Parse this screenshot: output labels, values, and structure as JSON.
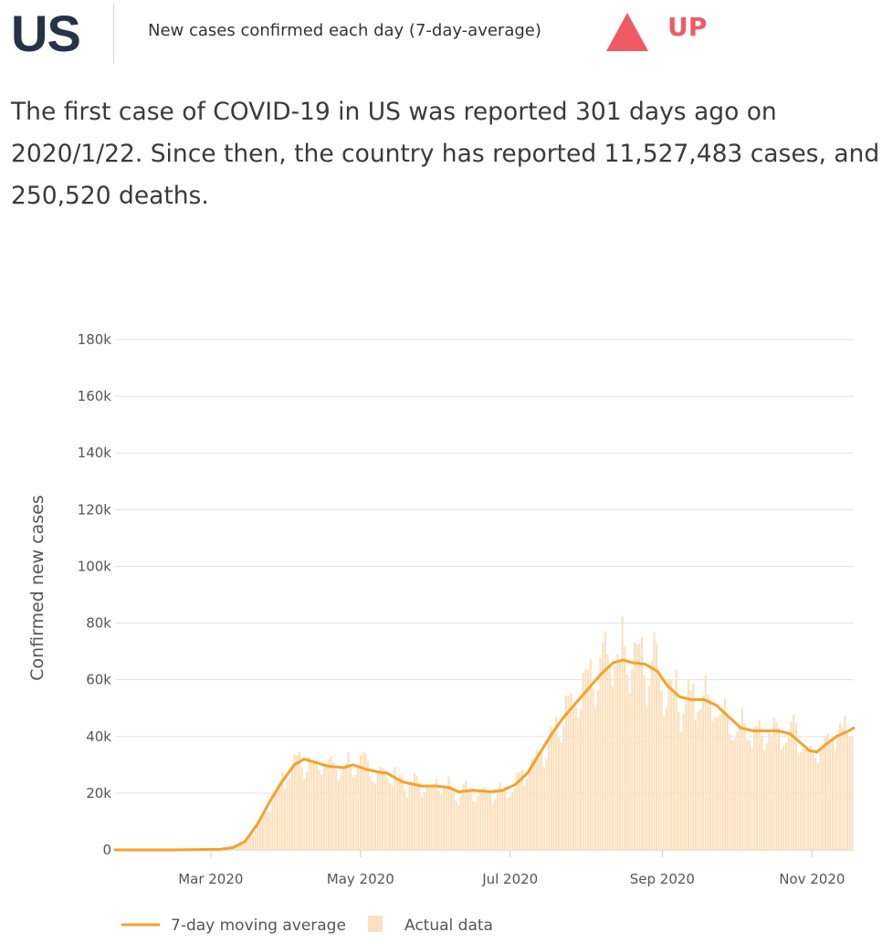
{
  "header": {
    "country": "US",
    "metric_label": "New cases confirmed each day (7-day-average)",
    "trend_icon": "triangle-up-icon",
    "trend_label": "UP",
    "trend_color": "#f05a64"
  },
  "summary": {
    "line1": "The first case of COVID-19 in US was reported 301 days ago on",
    "line2": "2020/1/22. Since then, the country has reported 11,527,483 cases, and",
    "line3": "250,520 deaths."
  },
  "chart_data": {
    "type": "bar+line",
    "ylabel": "Confirmed new cases",
    "ylim": [
      0,
      180000
    ],
    "yticks": [
      0,
      20000,
      40000,
      60000,
      80000,
      100000,
      120000,
      140000,
      160000,
      180000
    ],
    "ytick_labels": [
      "0",
      "20k",
      "40k",
      "60k",
      "80k",
      "100k",
      "120k",
      "140k",
      "160k",
      "180k"
    ],
    "xlim": [
      "2020-01-22",
      "2020-11-18"
    ],
    "xticks": [
      "2020-03-01",
      "2020-05-01",
      "2020-07-01",
      "2020-09-01",
      "2020-11-01"
    ],
    "xtick_labels": [
      "Mar 2020",
      "May 2020",
      "Jul 2020",
      "Sep 2020",
      "Nov 2020"
    ],
    "grid": "horizontal",
    "legend_position": "bottom-left",
    "series": [
      {
        "name": "7-day moving average",
        "type": "line",
        "color": "#f7a12a",
        "points": [
          [
            "2020-01-22",
            0
          ],
          [
            "2020-02-15",
            0
          ],
          [
            "2020-03-05",
            200
          ],
          [
            "2020-03-10",
            800
          ],
          [
            "2020-03-15",
            3000
          ],
          [
            "2020-03-20",
            9000
          ],
          [
            "2020-03-25",
            17000
          ],
          [
            "2020-03-30",
            24000
          ],
          [
            "2020-04-04",
            30000
          ],
          [
            "2020-04-08",
            32000
          ],
          [
            "2020-04-12",
            31000
          ],
          [
            "2020-04-18",
            29500
          ],
          [
            "2020-04-24",
            29000
          ],
          [
            "2020-04-28",
            30000
          ],
          [
            "2020-05-03",
            28500
          ],
          [
            "2020-05-08",
            27500
          ],
          [
            "2020-05-12",
            27000
          ],
          [
            "2020-05-18",
            24000
          ],
          [
            "2020-05-26",
            22500
          ],
          [
            "2020-06-01",
            22500
          ],
          [
            "2020-06-06",
            22000
          ],
          [
            "2020-06-10",
            20500
          ],
          [
            "2020-06-16",
            21000
          ],
          [
            "2020-06-23",
            20500
          ],
          [
            "2020-06-28",
            21000
          ],
          [
            "2020-07-03",
            23000
          ],
          [
            "2020-07-08",
            27000
          ],
          [
            "2020-07-13",
            34000
          ],
          [
            "2020-07-18",
            41000
          ],
          [
            "2020-07-23",
            47000
          ],
          [
            "2020-07-28",
            52000
          ],
          [
            "2020-08-02",
            57000
          ],
          [
            "2020-08-07",
            62000
          ],
          [
            "2020-08-12",
            66000
          ],
          [
            "2020-08-16",
            67000
          ],
          [
            "2020-08-20",
            66000
          ],
          [
            "2020-08-25",
            65500
          ],
          [
            "2020-08-30",
            63000
          ],
          [
            "2020-09-03",
            58000
          ],
          [
            "2020-09-08",
            54000
          ],
          [
            "2020-09-13",
            53000
          ],
          [
            "2020-09-18",
            53000
          ],
          [
            "2020-09-23",
            51000
          ],
          [
            "2020-09-28",
            47000
          ],
          [
            "2020-10-03",
            43000
          ],
          [
            "2020-10-08",
            42000
          ],
          [
            "2020-10-13",
            42000
          ],
          [
            "2020-10-18",
            42000
          ],
          [
            "2020-10-23",
            41000
          ],
          [
            "2020-10-27",
            38000
          ],
          [
            "2020-10-31",
            35000
          ],
          [
            "2020-11-03",
            34500
          ],
          [
            "2020-11-07",
            37500
          ],
          [
            "2020-11-11",
            40000
          ],
          [
            "2020-11-16",
            42000
          ],
          [
            "2020-11-18",
            43000
          ]
        ]
      },
      {
        "name": "Actual data",
        "type": "bar",
        "color": "#fbe0bc"
      }
    ]
  }
}
